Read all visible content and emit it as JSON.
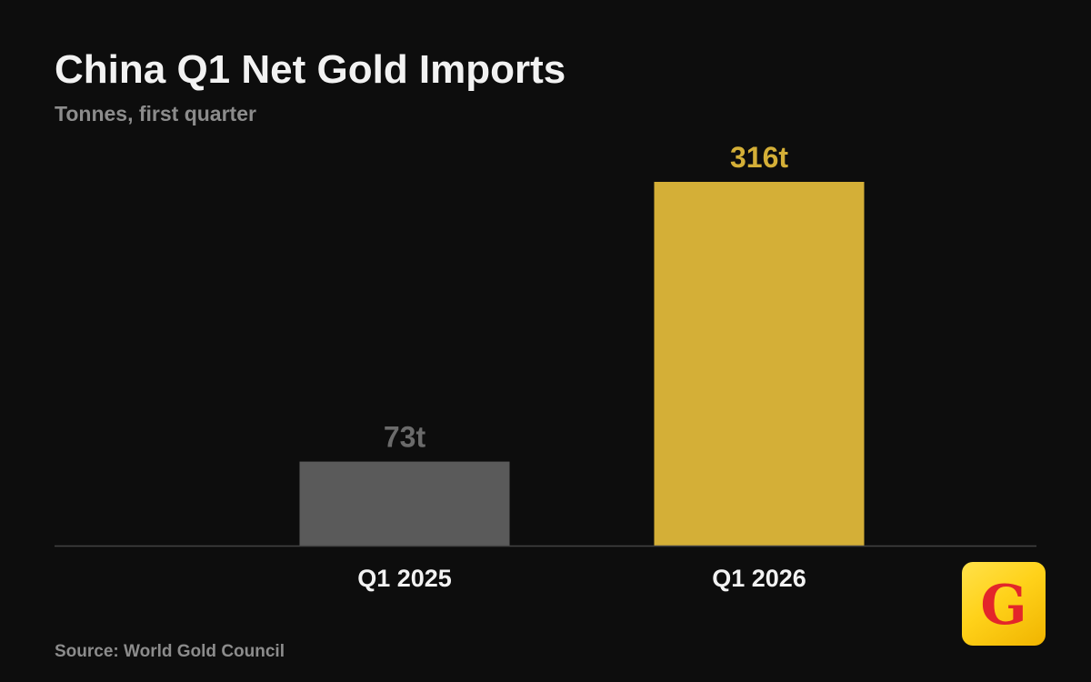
{
  "chart_data": {
    "type": "bar",
    "title": "China Q1 Net Gold Imports",
    "subtitle": "Tonnes, first quarter",
    "categories": [
      "Q1 2025",
      "Q1 2026"
    ],
    "values": [
      73,
      316
    ],
    "value_labels": [
      "73t",
      "316t"
    ],
    "bar_colors": [
      "#5a5a5a",
      "#d4af37"
    ],
    "value_label_colors": [
      "#6b6b6b",
      "#d4af37"
    ],
    "ylim": [
      0,
      316
    ],
    "grid": false,
    "legend": "none",
    "source": "Source: World Gold Council"
  },
  "logo": {
    "letter": "G",
    "background": "#ffd21a",
    "letter_color": "#e3262a"
  },
  "colors": {
    "background": "#0d0d0d",
    "axis": "#444444",
    "category_label": "#f2f2f2"
  }
}
